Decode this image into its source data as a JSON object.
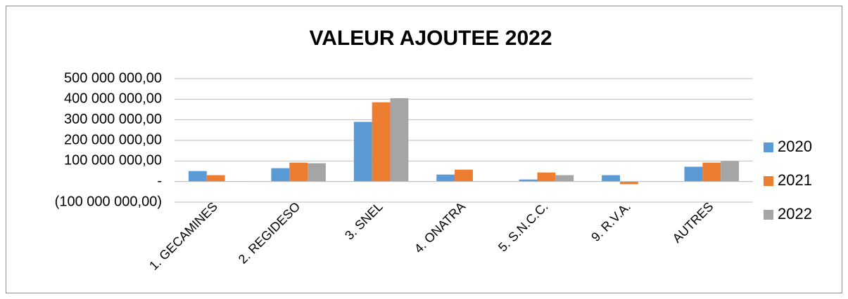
{
  "chart_data": {
    "type": "bar",
    "title": "VALEUR AJOUTEE 2022",
    "categories": [
      "1. GECAMINES",
      "2. REGIDESO",
      "3. SNEL",
      "4. ONATRA",
      "5. S.N.C.C.",
      "9. R.V.A.",
      "AUTRES"
    ],
    "series": [
      {
        "name": "2020",
        "color": "#5b9bd5",
        "values": [
          51000000,
          65000000,
          290000000,
          34000000,
          10000000,
          31000000,
          72000000
        ]
      },
      {
        "name": "2021",
        "color": "#ed7d31",
        "values": [
          31000000,
          92000000,
          385000000,
          58000000,
          44000000,
          -13000000,
          92000000
        ]
      },
      {
        "name": "2022",
        "color": "#a5a5a5",
        "values": [
          2000000,
          89000000,
          405000000,
          0,
          31000000,
          0,
          99000000
        ]
      }
    ],
    "ylim": [
      -100000000,
      500000000
    ],
    "yticks": [
      {
        "value": -100000000,
        "label": "(100 000 000,00)"
      },
      {
        "value": 0,
        "label": "-"
      },
      {
        "value": 100000000,
        "label": "100 000 000,00"
      },
      {
        "value": 200000000,
        "label": "200 000 000,00"
      },
      {
        "value": 300000000,
        "label": "300 000 000,00"
      },
      {
        "value": 400000000,
        "label": "400 000 000,00"
      },
      {
        "value": 500000000,
        "label": "500 000 000,00"
      }
    ],
    "grid": true,
    "legend": "right"
  }
}
